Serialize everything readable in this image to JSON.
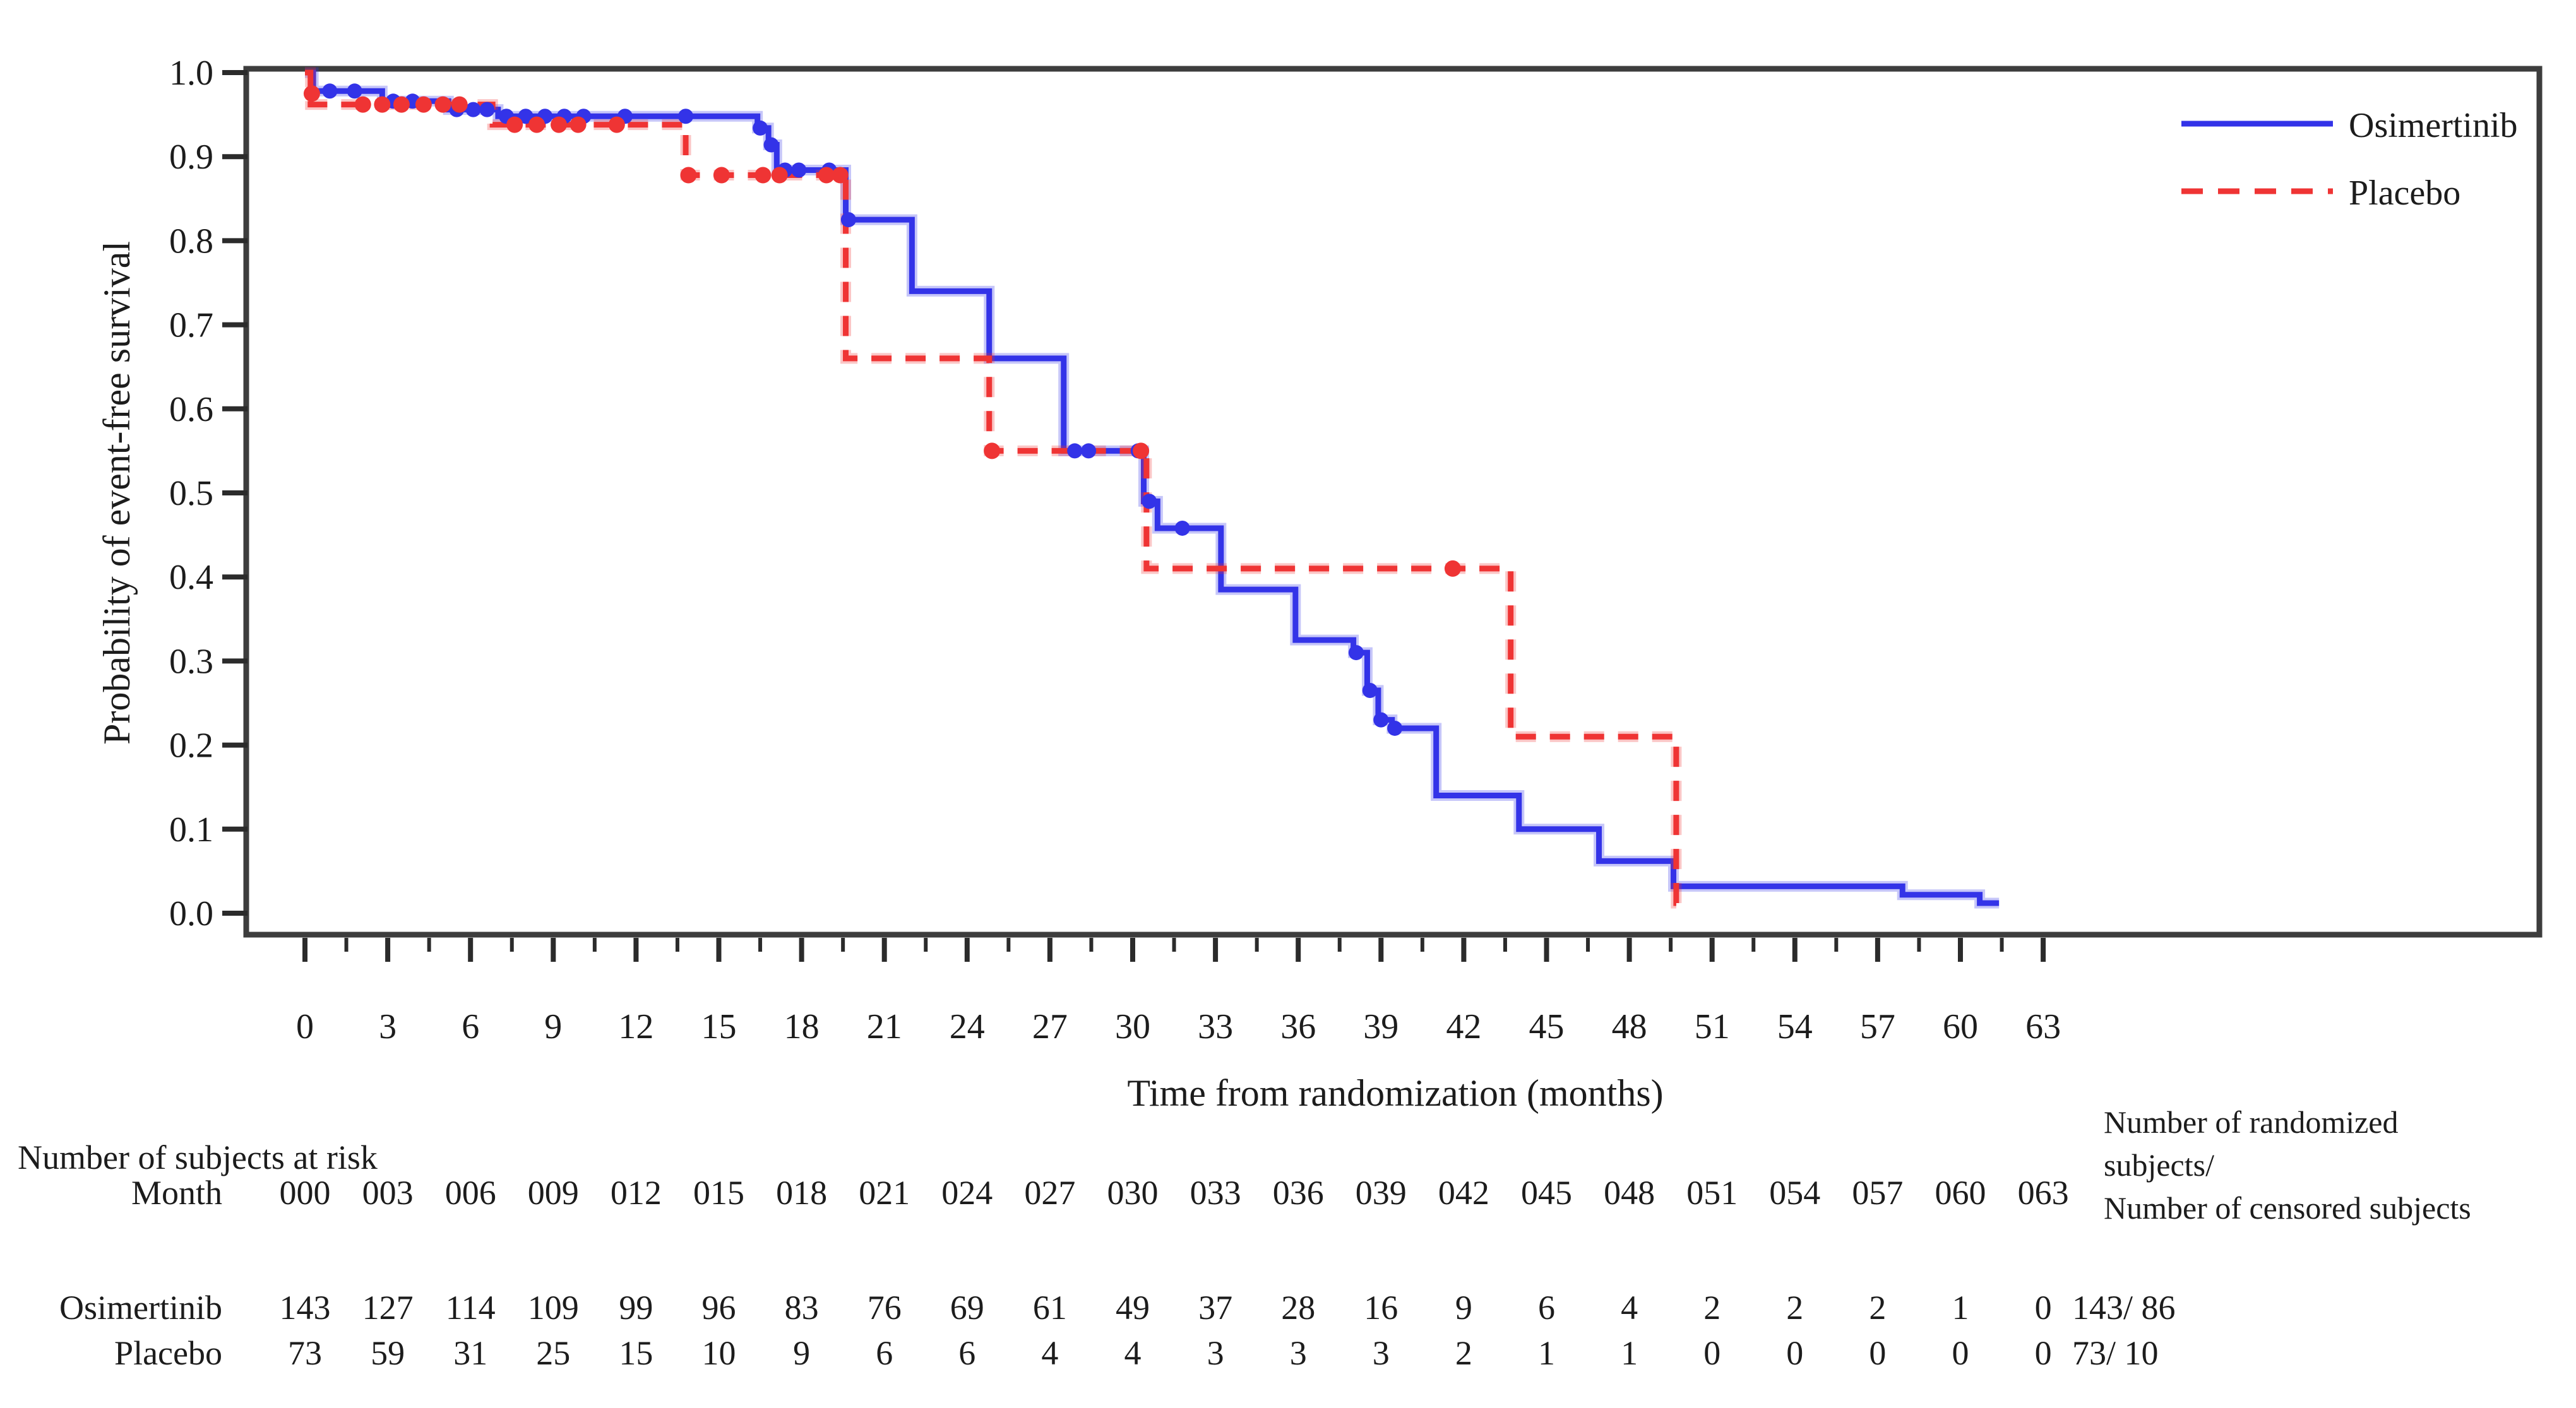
{
  "figure": {
    "kind": "kaplan-meier-plot",
    "axis_color": "#3d3d3d",
    "tick_color": "#2b2b2b",
    "text_color": "#1c1c1c",
    "y_axis": {
      "label": "Probability of event-free survival",
      "tick_labels": [
        "0.0",
        "0.1",
        "0.2",
        "0.3",
        "0.4",
        "0.5",
        "0.6",
        "0.7",
        "0.8",
        "0.9",
        "1.0"
      ]
    },
    "x_axis": {
      "label": "Time from randomization (months)",
      "tick_values": [
        0,
        3,
        6,
        9,
        12,
        15,
        18,
        21,
        24,
        27,
        30,
        33,
        36,
        39,
        42,
        45,
        48,
        51,
        54,
        57,
        60,
        63
      ]
    },
    "legend": {
      "entries": [
        {
          "label": "Osimertinib",
          "style": "solid",
          "color": "#3333e8"
        },
        {
          "label": "Placebo",
          "style": "dashed",
          "color": "#ef3434"
        }
      ]
    }
  },
  "chart_data": {
    "type": "line",
    "subtype": "step-survival",
    "title": "",
    "xlabel": "Time from randomization (months)",
    "ylabel": "Probability of event-free survival",
    "xlim": [
      0,
      63
    ],
    "ylim": [
      0.0,
      1.0
    ],
    "x_tick_step": 3,
    "y_tick_step": 0.1,
    "grid": false,
    "legend_position": "top-right",
    "series": [
      {
        "name": "Osimertinib",
        "color": "#3333e8",
        "line": "solid",
        "steps": [
          [
            0,
            1.0
          ],
          [
            0.3,
            0.978
          ],
          [
            2.8,
            0.966
          ],
          [
            5.2,
            0.956
          ],
          [
            7.0,
            0.948
          ],
          [
            16.4,
            0.934
          ],
          [
            16.8,
            0.914
          ],
          [
            17.1,
            0.884
          ],
          [
            19.6,
            0.825
          ],
          [
            22.0,
            0.74
          ],
          [
            24.8,
            0.66
          ],
          [
            27.5,
            0.55
          ],
          [
            30.4,
            0.49
          ],
          [
            30.9,
            0.458
          ],
          [
            33.2,
            0.385
          ],
          [
            35.9,
            0.325
          ],
          [
            38.0,
            0.31
          ],
          [
            38.5,
            0.265
          ],
          [
            38.9,
            0.23
          ],
          [
            39.4,
            0.22
          ],
          [
            41.0,
            0.14
          ],
          [
            44.0,
            0.1
          ],
          [
            46.9,
            0.062
          ],
          [
            49.6,
            0.032
          ],
          [
            57.9,
            0.022
          ],
          [
            60.7,
            0.012
          ],
          [
            61.4,
            0.012
          ]
        ],
        "censor_marks": [
          [
            0.9,
            0.978
          ],
          [
            1.8,
            0.978
          ],
          [
            3.2,
            0.966
          ],
          [
            3.9,
            0.966
          ],
          [
            5.5,
            0.956
          ],
          [
            6.1,
            0.956
          ],
          [
            6.6,
            0.956
          ],
          [
            7.3,
            0.948
          ],
          [
            8.0,
            0.948
          ],
          [
            8.7,
            0.948
          ],
          [
            9.4,
            0.948
          ],
          [
            10.1,
            0.948
          ],
          [
            11.6,
            0.948
          ],
          [
            13.8,
            0.948
          ],
          [
            16.5,
            0.934
          ],
          [
            16.9,
            0.914
          ],
          [
            17.4,
            0.884
          ],
          [
            17.9,
            0.884
          ],
          [
            19.0,
            0.884
          ],
          [
            19.7,
            0.825
          ],
          [
            27.9,
            0.55
          ],
          [
            28.4,
            0.55
          ],
          [
            30.2,
            0.55
          ],
          [
            30.6,
            0.49
          ],
          [
            31.8,
            0.458
          ],
          [
            38.1,
            0.31
          ],
          [
            38.6,
            0.265
          ],
          [
            39.0,
            0.23
          ],
          [
            39.5,
            0.22
          ]
        ]
      },
      {
        "name": "Placebo",
        "color": "#ef3434",
        "line": "dashed",
        "steps": [
          [
            0,
            1.0
          ],
          [
            0.2,
            0.962
          ],
          [
            6.8,
            0.938
          ],
          [
            13.8,
            0.878
          ],
          [
            19.6,
            0.66
          ],
          [
            24.8,
            0.55
          ],
          [
            30.5,
            0.41
          ],
          [
            43.7,
            0.21
          ],
          [
            49.7,
            0.012
          ],
          [
            49.9,
            0.012
          ]
        ],
        "censor_marks": [
          [
            0.25,
            0.975
          ],
          [
            2.1,
            0.962
          ],
          [
            2.8,
            0.962
          ],
          [
            3.5,
            0.962
          ],
          [
            4.3,
            0.962
          ],
          [
            5.0,
            0.962
          ],
          [
            5.6,
            0.962
          ],
          [
            7.6,
            0.938
          ],
          [
            8.4,
            0.938
          ],
          [
            9.2,
            0.938
          ],
          [
            9.9,
            0.938
          ],
          [
            11.3,
            0.938
          ],
          [
            13.9,
            0.878
          ],
          [
            15.1,
            0.878
          ],
          [
            16.6,
            0.878
          ],
          [
            17.2,
            0.878
          ],
          [
            18.9,
            0.878
          ],
          [
            19.4,
            0.878
          ],
          [
            24.9,
            0.55
          ],
          [
            30.3,
            0.55
          ],
          [
            41.6,
            0.41
          ]
        ]
      }
    ]
  },
  "risk_table": {
    "title": "Number of subjects at risk",
    "row_header": "Month",
    "months": [
      "000",
      "003",
      "006",
      "009",
      "012",
      "015",
      "018",
      "021",
      "024",
      "027",
      "030",
      "033",
      "036",
      "039",
      "042",
      "045",
      "048",
      "051",
      "054",
      "057",
      "060",
      "063"
    ],
    "rows": [
      {
        "label": "Osimertinib",
        "counts": [
          "143",
          "127",
          "114",
          "109",
          "99",
          "96",
          "83",
          "76",
          "69",
          "61",
          "49",
          "37",
          "28",
          "16",
          "9",
          "6",
          "4",
          "2",
          "2",
          "2",
          "1",
          "0"
        ],
        "summary": "143/ 86"
      },
      {
        "label": "Placebo",
        "counts": [
          "73",
          "59",
          "31",
          "25",
          "15",
          "10",
          "9",
          "6",
          "6",
          "4",
          "4",
          "3",
          "3",
          "3",
          "2",
          "1",
          "1",
          "0",
          "0",
          "0",
          "0",
          "0"
        ],
        "summary": "73/ 10"
      }
    ],
    "right_note_lines": [
      "Number of randomized",
      "subjects/",
      "Number of censored subjects"
    ]
  }
}
